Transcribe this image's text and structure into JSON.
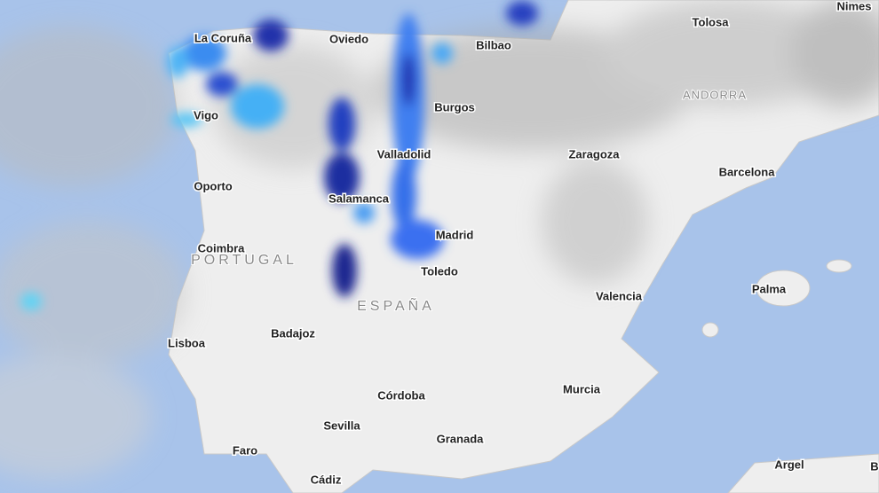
{
  "cities": [
    "Nimes",
    "Tolosa",
    "La Coruña",
    "Oviedo",
    "Bilbao",
    "Burgos",
    "Vigo",
    "Valladolid",
    "Zaragoza",
    "Barcelona",
    "Oporto",
    "Salamanca",
    "Madrid",
    "Coimbra",
    "Toledo",
    "Palma",
    "Valencia",
    "Lisboa",
    "Badajoz",
    "Córdoba",
    "Murcia",
    "Sevilla",
    "Granada",
    "Faro",
    "Argel",
    "Cádiz",
    "B"
  ],
  "regions": [
    "ANDORRA",
    "PORTUGAL",
    "ESPAÑA"
  ]
}
